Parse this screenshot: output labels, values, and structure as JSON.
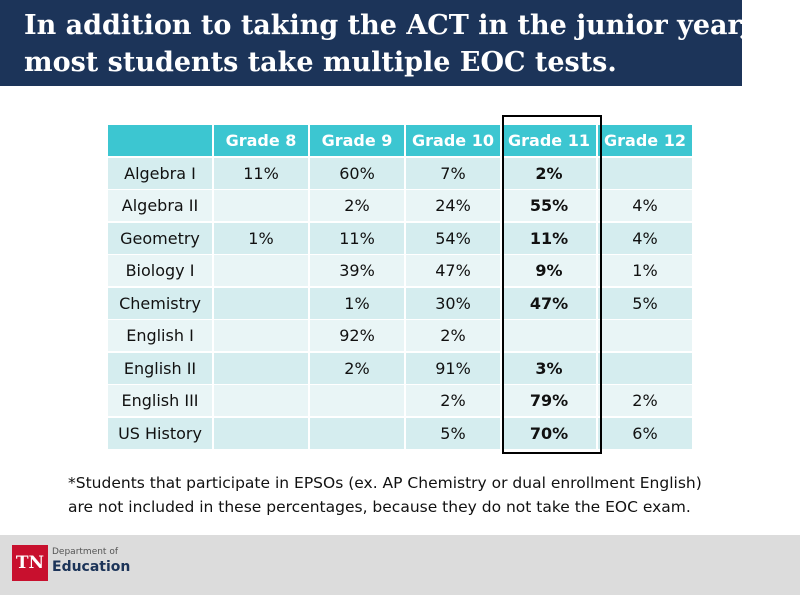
{
  "header": {
    "title_lines": [
      "In addition to taking the ACT in the junior year,",
      "most students take multiple EOC tests."
    ]
  },
  "table": {
    "columns": [
      "Grade 8",
      "Grade 9",
      "Grade 10",
      "Grade 11",
      "Grade 12"
    ],
    "rows": [
      [
        "Algebra I",
        "11%",
        "60%",
        "7%",
        "2%",
        null
      ],
      [
        "Algebra II",
        null,
        "2%",
        "24%",
        "55%",
        "4%"
      ],
      [
        "Geometry",
        "1%",
        "11%",
        "54%",
        "11%",
        "4%"
      ],
      [
        "Biology I",
        null,
        "39%",
        "47%",
        "9%",
        "1%"
      ],
      [
        "Chemistry",
        null,
        "1%",
        "30%",
        "47%",
        "5%"
      ],
      [
        "English I",
        null,
        "92%",
        "2%",
        null,
        null
      ],
      [
        "English II",
        null,
        "2%",
        "91%",
        "3%",
        null
      ],
      [
        "English III",
        null,
        null,
        "2%",
        "79%",
        "2%"
      ],
      [
        "US History",
        null,
        null,
        "5%",
        "70%",
        "6%"
      ]
    ]
  },
  "footnote_lines": [
    "*Students that participate in EPSOs (ex. AP Chemistry or dual enrollment English)",
    "are not included in these percentages, because they do not take the EOC exam."
  ],
  "logo": {
    "mark": "TN",
    "line1": "Department of",
    "line2": "Education"
  }
}
